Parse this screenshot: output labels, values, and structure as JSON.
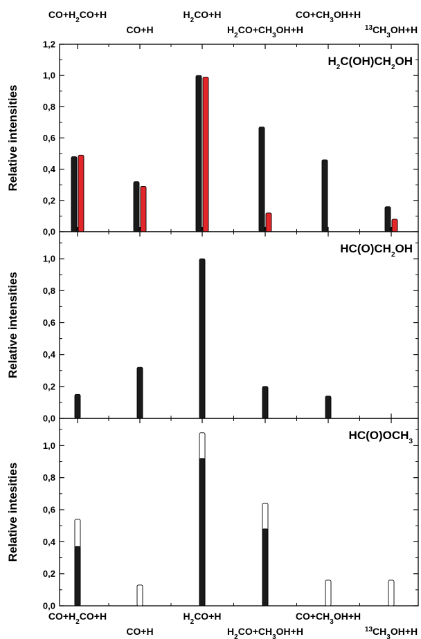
{
  "chart_data": {
    "type": "bar",
    "categories": [
      "CO+H2CO+H",
      "CO+H",
      "H2CO+H",
      "H2CO+CH3OH+H",
      "CO+CH3OH+H",
      "13CH3OH+H"
    ],
    "colors": {
      "black_series": "#1a1a1a",
      "red_series": "#e3262a",
      "open_series": "#ffffff"
    },
    "panels": [
      {
        "title": "H2C(OH)CH2OH",
        "ylabel": "Relative intensities",
        "ylim": [
          0,
          1.2
        ],
        "yticks": [
          "0,0",
          "0,2",
          "0,4",
          "0,6",
          "0,8",
          "1,0",
          "1,2"
        ],
        "series": [
          {
            "color": "black",
            "values": [
              0.48,
              0.32,
              1.0,
              0.67,
              0.46,
              0.16
            ]
          },
          {
            "color": "red",
            "values": [
              0.49,
              0.29,
              0.99,
              0.12,
              null,
              0.08
            ]
          }
        ]
      },
      {
        "title": "HC(O)CH2OH",
        "ylabel": "Relative intensities",
        "ylim": [
          0,
          1.17
        ],
        "yticks": [
          "0,0",
          "0,2",
          "0,4",
          "0,6",
          "0,8",
          "1,0"
        ],
        "series": [
          {
            "color": "black",
            "values": [
              0.15,
              0.32,
              1.0,
              0.2,
              0.14,
              null
            ]
          }
        ]
      },
      {
        "title": "HC(O)OCH3",
        "ylabel": "Relative intesities",
        "ylim": [
          0,
          1.17
        ],
        "yticks": [
          "0,0",
          "0,2",
          "0,4",
          "0,6",
          "0,8",
          "1,0"
        ],
        "series": [
          {
            "color": "open",
            "values": [
              0.54,
              0.13,
              1.08,
              0.64,
              0.16,
              0.16
            ]
          },
          {
            "color": "black",
            "values": [
              0.37,
              0.0,
              0.92,
              0.48,
              0.0,
              0.0
            ]
          }
        ]
      }
    ]
  }
}
